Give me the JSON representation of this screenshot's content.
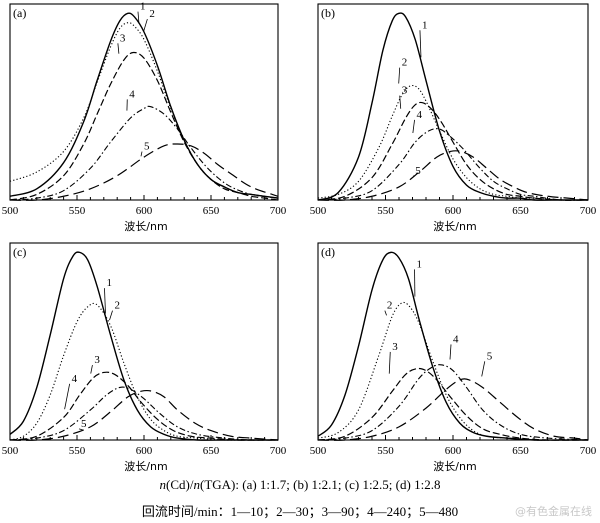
{
  "caption": {
    "line1_a": "n",
    "line1_b": "(Cd)/",
    "line1_c": "n",
    "line1_d": "(TGA): (a) 1:1.7; (b) 1:2.1; (c) 1:2.5; (d) 1:2.8",
    "line2": "回流时间/min：1—10；2—30；3—90；4—240；5—480"
  },
  "watermark": "@有色金属在线",
  "chart_data": [
    {
      "type": "line",
      "panel": "(a)",
      "xlabel": "波长/nm",
      "xlim": [
        500,
        700
      ],
      "xticks": [
        500,
        550,
        600,
        650,
        700
      ],
      "ylim": [
        0,
        1.05
      ],
      "series": [
        {
          "name": "1",
          "style": "solid",
          "x": [
            500,
            520,
            540,
            555,
            565,
            575,
            582,
            588,
            593,
            600,
            610,
            620,
            630,
            640,
            650,
            660,
            670,
            680,
            690,
            700
          ],
          "y": [
            0.02,
            0.06,
            0.2,
            0.42,
            0.64,
            0.85,
            0.96,
            1.0,
            0.98,
            0.9,
            0.72,
            0.5,
            0.32,
            0.19,
            0.11,
            0.07,
            0.04,
            0.03,
            0.02,
            0.01
          ]
        },
        {
          "name": "2",
          "style": "dotted",
          "x": [
            500,
            520,
            540,
            555,
            565,
            575,
            582,
            588,
            593,
            600,
            610,
            620,
            630,
            640,
            650,
            660,
            670,
            680,
            690,
            700
          ],
          "y": [
            0.1,
            0.15,
            0.26,
            0.44,
            0.63,
            0.82,
            0.92,
            0.95,
            0.93,
            0.86,
            0.69,
            0.49,
            0.32,
            0.19,
            0.11,
            0.07,
            0.04,
            0.03,
            0.02,
            0.01
          ]
        },
        {
          "name": "3",
          "style": "dashed",
          "x": [
            500,
            520,
            540,
            555,
            565,
            575,
            585,
            592,
            600,
            610,
            620,
            630,
            640,
            650,
            660,
            670,
            680,
            690,
            700
          ],
          "y": [
            0.0,
            0.03,
            0.13,
            0.3,
            0.46,
            0.62,
            0.75,
            0.79,
            0.76,
            0.64,
            0.47,
            0.31,
            0.19,
            0.11,
            0.06,
            0.04,
            0.02,
            0.01,
            0.0
          ]
        },
        {
          "name": "4",
          "style": "dashdot",
          "x": [
            500,
            520,
            540,
            560,
            575,
            590,
            600,
            605,
            615,
            625,
            635,
            645,
            655,
            665,
            680,
            700
          ],
          "y": [
            0.0,
            0.01,
            0.05,
            0.17,
            0.31,
            0.44,
            0.49,
            0.5,
            0.46,
            0.38,
            0.28,
            0.19,
            0.12,
            0.07,
            0.03,
            0.01
          ]
        },
        {
          "name": "5",
          "style": "longdash",
          "x": [
            500,
            520,
            540,
            560,
            580,
            600,
            615,
            625,
            635,
            645,
            655,
            665,
            680,
            700
          ],
          "y": [
            0.0,
            0.0,
            0.02,
            0.06,
            0.13,
            0.23,
            0.29,
            0.3,
            0.29,
            0.25,
            0.19,
            0.14,
            0.07,
            0.02
          ]
        }
      ],
      "label_positions": [
        {
          "name": "1",
          "x": 597,
          "y": 1.02
        },
        {
          "name": "2",
          "x": 604,
          "y": 0.98
        },
        {
          "name": "3",
          "x": 582,
          "y": 0.85
        },
        {
          "name": "4",
          "x": 589,
          "y": 0.55
        },
        {
          "name": "5",
          "x": 600,
          "y": 0.27
        }
      ]
    },
    {
      "type": "line",
      "panel": "(b)",
      "xlabel": "波长/nm",
      "xlim": [
        500,
        700
      ],
      "xticks": [
        500,
        550,
        600,
        650,
        700
      ],
      "ylim": [
        0,
        1.05
      ],
      "series": [
        {
          "name": "1",
          "style": "solid",
          "x": [
            500,
            515,
            530,
            540,
            548,
            555,
            560,
            565,
            572,
            580,
            590,
            600,
            610,
            620,
            630,
            640,
            650,
            660,
            680,
            700
          ],
          "y": [
            0.0,
            0.04,
            0.23,
            0.52,
            0.8,
            0.96,
            1.0,
            0.98,
            0.86,
            0.64,
            0.37,
            0.18,
            0.08,
            0.04,
            0.02,
            0.01,
            0.01,
            0.0,
            0.0,
            0.0
          ]
        },
        {
          "name": "2",
          "style": "dotted",
          "x": [
            500,
            515,
            530,
            545,
            555,
            562,
            568,
            574,
            580,
            590,
            600,
            610,
            620,
            630,
            640,
            650,
            660,
            680,
            700
          ],
          "y": [
            0.01,
            0.03,
            0.1,
            0.28,
            0.45,
            0.56,
            0.61,
            0.6,
            0.53,
            0.37,
            0.22,
            0.12,
            0.06,
            0.03,
            0.02,
            0.01,
            0.01,
            0.0,
            0.0
          ]
        },
        {
          "name": "3",
          "style": "dashed",
          "x": [
            500,
            520,
            540,
            555,
            565,
            572,
            578,
            585,
            592,
            600,
            610,
            620,
            630,
            640,
            650,
            660,
            680,
            700
          ],
          "y": [
            0.0,
            0.02,
            0.12,
            0.3,
            0.44,
            0.51,
            0.52,
            0.48,
            0.41,
            0.31,
            0.19,
            0.11,
            0.06,
            0.03,
            0.02,
            0.01,
            0.0,
            0.0
          ]
        },
        {
          "name": "4",
          "style": "dashdot",
          "x": [
            500,
            520,
            540,
            560,
            572,
            582,
            590,
            598,
            608,
            620,
            630,
            640,
            650,
            660,
            680,
            700
          ],
          "y": [
            0.0,
            0.01,
            0.05,
            0.19,
            0.31,
            0.37,
            0.38,
            0.34,
            0.27,
            0.17,
            0.1,
            0.06,
            0.03,
            0.02,
            0.0,
            0.0
          ]
        },
        {
          "name": "5",
          "style": "longdash",
          "x": [
            500,
            520,
            540,
            560,
            575,
            588,
            598,
            606,
            615,
            625,
            635,
            645,
            655,
            670,
            685,
            700
          ],
          "y": [
            0.0,
            0.0,
            0.02,
            0.07,
            0.15,
            0.23,
            0.26,
            0.26,
            0.23,
            0.17,
            0.11,
            0.07,
            0.04,
            0.02,
            0.01,
            0.0
          ]
        }
      ],
      "label_positions": [
        {
          "name": "1",
          "x": 577,
          "y": 0.92
        },
        {
          "name": "2",
          "x": 562,
          "y": 0.72
        },
        {
          "name": "3",
          "x": 562,
          "y": 0.57
        },
        {
          "name": "4",
          "x": 573,
          "y": 0.44
        },
        {
          "name": "5",
          "x": 572,
          "y": 0.14
        }
      ]
    },
    {
      "type": "line",
      "panel": "(c)",
      "xlabel": "波长/nm",
      "xlim": [
        500,
        700
      ],
      "xticks": [
        500,
        550,
        600,
        650,
        700
      ],
      "ylim": [
        0,
        1.05
      ],
      "series": [
        {
          "name": "1",
          "style": "solid",
          "x": [
            500,
            510,
            520,
            530,
            540,
            547,
            552,
            558,
            565,
            575,
            585,
            595,
            605,
            615,
            625,
            640,
            660,
            680,
            700
          ],
          "y": [
            0.03,
            0.1,
            0.28,
            0.56,
            0.86,
            0.98,
            1.0,
            0.96,
            0.82,
            0.56,
            0.32,
            0.16,
            0.07,
            0.03,
            0.01,
            0.0,
            0.0,
            0.0,
            0.0
          ]
        },
        {
          "name": "2",
          "style": "dotted",
          "x": [
            500,
            510,
            520,
            530,
            540,
            550,
            558,
            565,
            575,
            585,
            595,
            605,
            615,
            625,
            640,
            660,
            680,
            700
          ],
          "y": [
            0.0,
            0.02,
            0.09,
            0.24,
            0.45,
            0.63,
            0.71,
            0.72,
            0.61,
            0.41,
            0.23,
            0.11,
            0.05,
            0.02,
            0.01,
            0.0,
            0.0,
            0.0
          ]
        },
        {
          "name": "3",
          "style": "dashed",
          "x": [
            500,
            520,
            540,
            552,
            562,
            570,
            578,
            588,
            598,
            610,
            622,
            635,
            650,
            670,
            700
          ],
          "y": [
            0.0,
            0.02,
            0.12,
            0.24,
            0.33,
            0.36,
            0.35,
            0.29,
            0.2,
            0.11,
            0.05,
            0.02,
            0.01,
            0.0,
            0.0
          ]
        },
        {
          "name": "4",
          "style": "dashdot",
          "x": [
            500,
            520,
            540,
            560,
            572,
            582,
            590,
            600,
            612,
            625,
            640,
            660,
            680,
            700
          ],
          "y": [
            0.0,
            0.01,
            0.05,
            0.16,
            0.24,
            0.28,
            0.27,
            0.22,
            0.14,
            0.07,
            0.03,
            0.01,
            0.0,
            0.0
          ]
        },
        {
          "name": "5",
          "style": "longdash",
          "x": [
            500,
            520,
            540,
            560,
            575,
            588,
            598,
            606,
            615,
            625,
            638,
            650,
            665,
            680,
            700
          ],
          "y": [
            0.0,
            0.0,
            0.02,
            0.07,
            0.15,
            0.23,
            0.26,
            0.26,
            0.23,
            0.16,
            0.09,
            0.05,
            0.02,
            0.01,
            0.0
          ]
        }
      ],
      "label_positions": [
        {
          "name": "1",
          "x": 572,
          "y": 0.82
        },
        {
          "name": "2",
          "x": 578,
          "y": 0.7
        },
        {
          "name": "3",
          "x": 563,
          "y": 0.41
        },
        {
          "name": "4",
          "x": 546,
          "y": 0.31
        },
        {
          "name": "5",
          "x": 553,
          "y": 0.07
        }
      ]
    },
    {
      "type": "line",
      "panel": "(d)",
      "xlabel": "波长/nm",
      "xlim": [
        500,
        700
      ],
      "xticks": [
        500,
        550,
        600,
        650,
        700
      ],
      "ylim": [
        0,
        1.05
      ],
      "series": [
        {
          "name": "1",
          "style": "solid",
          "x": [
            500,
            510,
            520,
            530,
            540,
            548,
            554,
            560,
            567,
            575,
            585,
            595,
            605,
            615,
            625,
            640,
            660,
            680,
            700
          ],
          "y": [
            0.02,
            0.08,
            0.24,
            0.5,
            0.8,
            0.96,
            1.0,
            0.97,
            0.86,
            0.64,
            0.39,
            0.2,
            0.09,
            0.04,
            0.02,
            0.01,
            0.0,
            0.0,
            0.0
          ]
        },
        {
          "name": "2",
          "style": "dotted",
          "x": [
            500,
            515,
            530,
            545,
            555,
            562,
            568,
            575,
            585,
            595,
            605,
            615,
            625,
            640,
            660,
            680,
            700
          ],
          "y": [
            0.01,
            0.04,
            0.16,
            0.45,
            0.66,
            0.73,
            0.71,
            0.62,
            0.42,
            0.24,
            0.12,
            0.05,
            0.02,
            0.01,
            0.0,
            0.0,
            0.0
          ]
        },
        {
          "name": "3",
          "style": "dashed",
          "x": [
            500,
            520,
            540,
            555,
            565,
            573,
            580,
            588,
            598,
            610,
            622,
            635,
            650,
            670,
            700
          ],
          "y": [
            0.0,
            0.02,
            0.12,
            0.26,
            0.35,
            0.38,
            0.37,
            0.32,
            0.23,
            0.13,
            0.06,
            0.03,
            0.01,
            0.0,
            0.0
          ]
        },
        {
          "name": "4",
          "style": "dashdot",
          "x": [
            500,
            520,
            540,
            560,
            575,
            585,
            592,
            600,
            610,
            622,
            635,
            650,
            670,
            700
          ],
          "y": [
            0.0,
            0.01,
            0.05,
            0.18,
            0.33,
            0.39,
            0.4,
            0.37,
            0.28,
            0.16,
            0.08,
            0.03,
            0.01,
            0.0
          ]
        },
        {
          "name": "5",
          "style": "longdash",
          "x": [
            500,
            520,
            540,
            560,
            580,
            595,
            605,
            612,
            622,
            635,
            648,
            660,
            675,
            690,
            700
          ],
          "y": [
            0.0,
            0.0,
            0.02,
            0.07,
            0.17,
            0.27,
            0.32,
            0.32,
            0.28,
            0.2,
            0.12,
            0.06,
            0.02,
            0.01,
            0.0
          ]
        }
      ],
      "label_positions": [
        {
          "name": "1",
          "x": 573,
          "y": 0.92
        },
        {
          "name": "2",
          "x": 551,
          "y": 0.7
        },
        {
          "name": "3",
          "x": 555,
          "y": 0.48
        },
        {
          "name": "4",
          "x": 600,
          "y": 0.52
        },
        {
          "name": "5",
          "x": 625,
          "y": 0.43
        }
      ]
    }
  ]
}
